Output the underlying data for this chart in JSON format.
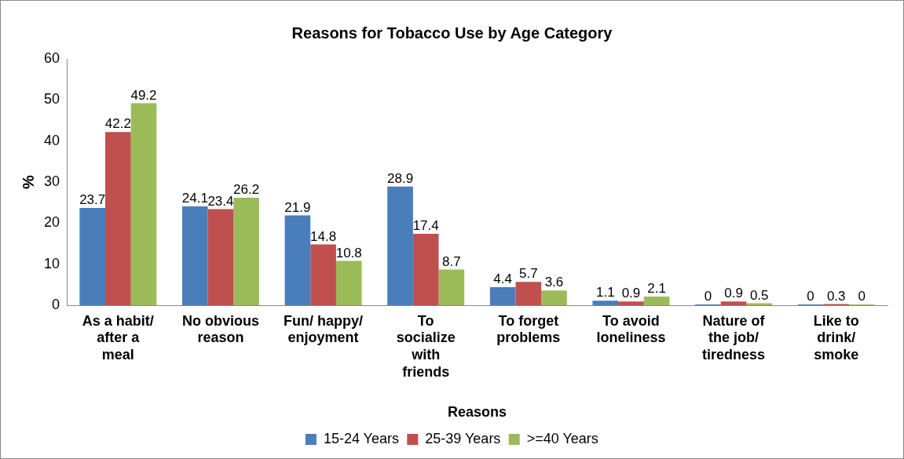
{
  "chart_data": {
    "type": "bar",
    "title": "Reasons for Tobacco Use by Age Category",
    "xlabel": "Reasons",
    "ylabel": "%",
    "categories": [
      "As a habit/ after a meal",
      "No obvious reason",
      "Fun/ happy/ enjoyment",
      "To socialize with friends",
      "To forget problems",
      "To avoid loneliness",
      "Nature of the job/ tiredness",
      "Like to drink/ smoke"
    ],
    "series": [
      {
        "name": "15-24 Years",
        "color": "#4a7ebb",
        "values": [
          23.7,
          24.1,
          21.9,
          28.9,
          4.4,
          1.1,
          0,
          0
        ]
      },
      {
        "name": "25-39 Years",
        "color": "#c0504d",
        "values": [
          42.2,
          23.4,
          14.8,
          17.4,
          5.7,
          0.9,
          0.9,
          0.3
        ]
      },
      {
        "name": ">=40 Years",
        "color": "#9bbb59",
        "values": [
          49.2,
          26.2,
          10.8,
          8.7,
          3.6,
          2.1,
          0.5,
          0
        ]
      }
    ],
    "ylim": [
      0,
      60
    ],
    "yticks": [
      0,
      10,
      20,
      30,
      40,
      50,
      60
    ],
    "grid": false,
    "legend": "bottom",
    "data_labels": true
  }
}
